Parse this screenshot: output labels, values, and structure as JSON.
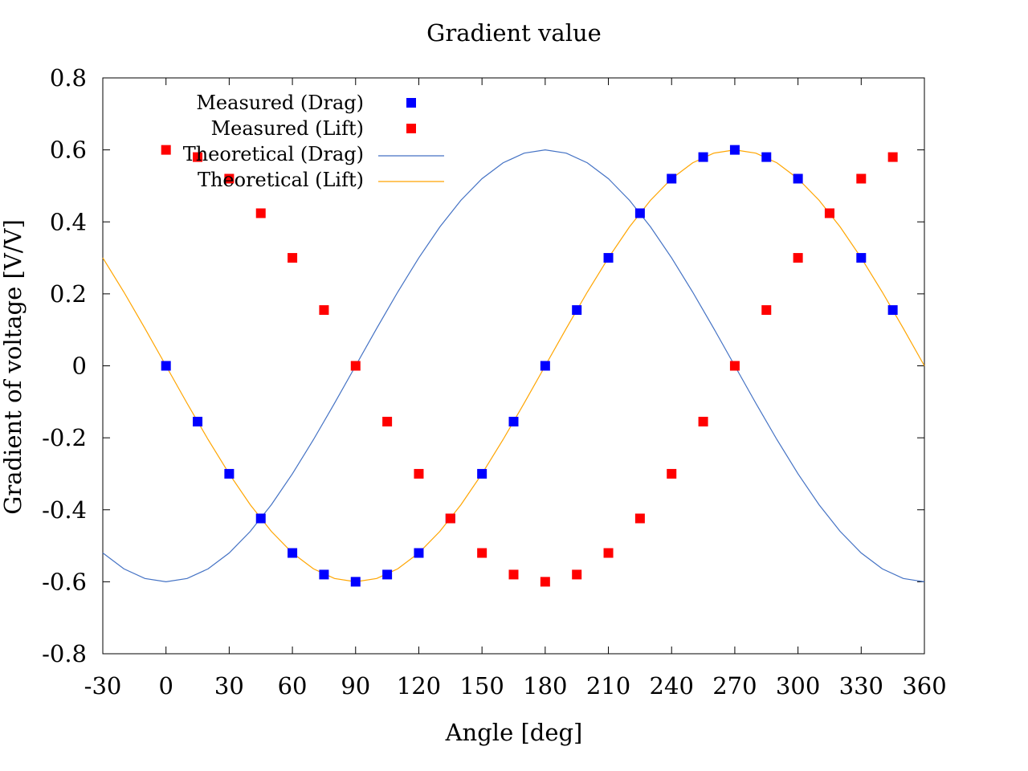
{
  "chart_data": {
    "type": "scatter",
    "title": "Gradient value",
    "xlabel": "Angle [deg]",
    "ylabel": "Gradient of voltage [V/V]",
    "xlim": [
      -30,
      360
    ],
    "ylim": [
      -0.8,
      0.8
    ],
    "xticks": [
      "-30",
      "0",
      "30",
      "60",
      "90",
      "120",
      "150",
      "180",
      "210",
      "240",
      "270",
      "300",
      "330",
      "360"
    ],
    "yticks": [
      "0.8",
      "0.6",
      "0.4",
      "0.2",
      "0",
      "-0.2",
      "-0.4",
      "-0.6",
      "-0.8"
    ],
    "grid": false,
    "legend_position": "top-left",
    "series": [
      {
        "name": "Measured (Drag)",
        "kind": "points",
        "color": "#0000ff",
        "x": [
          0,
          15,
          30,
          45,
          60,
          75,
          90,
          105,
          120,
          135,
          150,
          165,
          180,
          195,
          210,
          225,
          240,
          255,
          270,
          285,
          300,
          315,
          330,
          345
        ],
        "y": [
          0,
          -0.155,
          -0.3,
          -0.424,
          -0.52,
          -0.58,
          -0.6,
          -0.58,
          -0.52,
          -0.424,
          -0.3,
          -0.155,
          0,
          0.155,
          0.3,
          0.424,
          0.52,
          0.58,
          0.6,
          0.58,
          0.52,
          0.424,
          0.3,
          0.155
        ]
      },
      {
        "name": "Measured (Lift)",
        "kind": "points",
        "color": "#ff0000",
        "x": [
          0,
          15,
          30,
          45,
          60,
          75,
          90,
          105,
          120,
          135,
          150,
          165,
          180,
          195,
          210,
          225,
          240,
          255,
          270,
          285,
          300,
          315,
          330,
          345
        ],
        "y": [
          0.6,
          0.58,
          0.52,
          0.424,
          0.3,
          0.155,
          0,
          -0.155,
          -0.3,
          -0.424,
          -0.52,
          -0.58,
          -0.6,
          -0.58,
          -0.52,
          -0.424,
          -0.3,
          -0.155,
          0,
          0.155,
          0.3,
          0.424,
          0.52,
          0.58
        ]
      },
      {
        "name": "Theoretical (Drag)",
        "kind": "line",
        "color": "#4472c4",
        "x": [
          -30,
          -20,
          -10,
          0,
          10,
          20,
          30,
          40,
          50,
          60,
          70,
          80,
          90,
          100,
          110,
          120,
          130,
          140,
          150,
          160,
          170,
          180,
          190,
          200,
          210,
          220,
          230,
          240,
          250,
          260,
          270,
          280,
          290,
          300,
          310,
          320,
          330,
          340,
          350,
          360
        ],
        "y": [
          -0.52,
          -0.564,
          -0.591,
          -0.6,
          -0.591,
          -0.564,
          -0.52,
          -0.46,
          -0.386,
          -0.3,
          -0.205,
          -0.104,
          0,
          0.104,
          0.205,
          0.3,
          0.386,
          0.46,
          0.52,
          0.564,
          0.591,
          0.6,
          0.591,
          0.564,
          0.52,
          0.46,
          0.386,
          0.3,
          0.205,
          0.104,
          0,
          -0.104,
          -0.205,
          -0.3,
          -0.386,
          -0.46,
          -0.52,
          -0.564,
          -0.591,
          -0.6
        ]
      },
      {
        "name": "Theoretical (Lift)",
        "kind": "line",
        "color": "#ffa500",
        "x": [
          -30,
          -20,
          -10,
          0,
          10,
          20,
          30,
          40,
          50,
          60,
          70,
          80,
          90,
          100,
          110,
          120,
          130,
          140,
          150,
          160,
          170,
          180,
          190,
          200,
          210,
          220,
          230,
          240,
          250,
          260,
          270,
          280,
          290,
          300,
          310,
          320,
          330,
          340,
          350,
          360
        ],
        "y": [
          0.3,
          0.205,
          0.104,
          0,
          -0.104,
          -0.205,
          -0.3,
          -0.386,
          -0.46,
          -0.52,
          -0.564,
          -0.591,
          -0.6,
          -0.591,
          -0.564,
          -0.52,
          -0.46,
          -0.386,
          -0.3,
          -0.205,
          -0.104,
          0,
          0.104,
          0.205,
          0.3,
          0.386,
          0.46,
          0.52,
          0.564,
          0.591,
          0.6,
          0.591,
          0.564,
          0.52,
          0.46,
          0.386,
          0.3,
          0.205,
          0.104,
          0
        ]
      }
    ]
  }
}
